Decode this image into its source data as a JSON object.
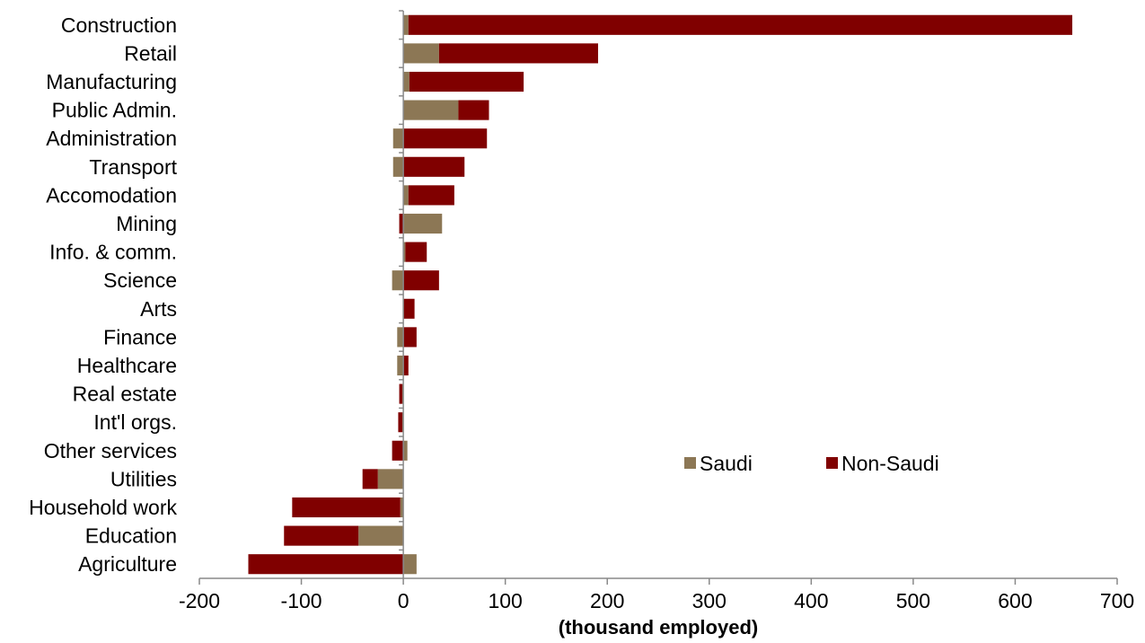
{
  "chart_data": {
    "type": "bar",
    "orientation": "horizontal",
    "stacked": true,
    "title": "",
    "xlabel": "(thousand employed)",
    "ylabel": "",
    "xlim": [
      -200,
      700
    ],
    "xticks": [
      -200,
      -100,
      0,
      100,
      200,
      300,
      400,
      500,
      600,
      700
    ],
    "grid": false,
    "legend_position": "bottom-right inside",
    "categories": [
      "Construction",
      "Retail",
      "Manufacturing",
      "Public Admin.",
      "Administration",
      "Transport",
      "Accomodation",
      "Mining",
      "Info. & comm.",
      "Science",
      "Arts",
      "Finance",
      "Healthcare",
      "Real estate",
      "Int'l orgs.",
      "Other services",
      "Utilities",
      "Household work",
      "Education",
      "Agriculture"
    ],
    "series": [
      {
        "name": "Saudi",
        "color": "#8C7755",
        "values": [
          5,
          35,
          6,
          54,
          -10,
          -10,
          5,
          38,
          2,
          -11,
          0,
          -6,
          -6,
          -1,
          -1,
          4,
          -25,
          -3,
          -44,
          13
        ]
      },
      {
        "name": "Non-Saudi",
        "color": "#800000",
        "values": [
          651,
          156,
          112,
          30,
          82,
          60,
          45,
          -4,
          21,
          35,
          11,
          13,
          5,
          -3,
          -4,
          -11,
          -15,
          -106,
          -73,
          -152
        ]
      }
    ]
  }
}
